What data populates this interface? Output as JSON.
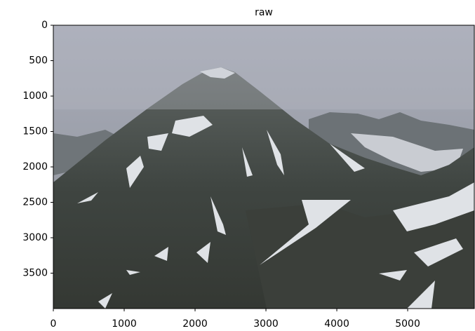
{
  "chart_data": {
    "type": "image",
    "title": "raw",
    "xlim": [
      0,
      5940
    ],
    "ylim": [
      4000,
      0
    ],
    "xticks": [
      0,
      1000,
      2000,
      3000,
      4000,
      5000
    ],
    "yticks": [
      0,
      500,
      1000,
      1500,
      2000,
      2500,
      3000,
      3500
    ]
  }
}
